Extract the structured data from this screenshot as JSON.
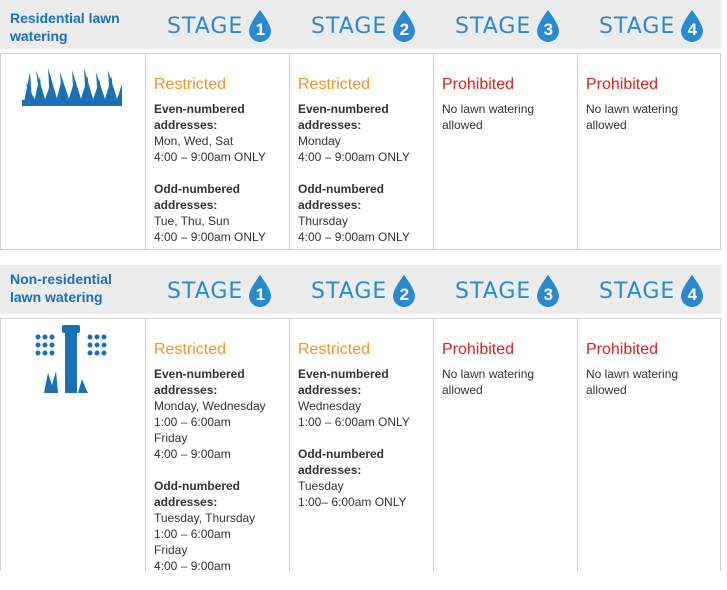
{
  "colors": {
    "accent": "#2a8ad0",
    "restricted": "#f0962a",
    "prohibited": "#e0201a",
    "title": "#1a6fb5"
  },
  "stage_word": "STAGE",
  "residential": {
    "title": "Residential lawn watering",
    "icon": "grass-icon",
    "stages": [
      "1",
      "2",
      "3",
      "4"
    ],
    "cells": [
      {
        "status": "Restricted",
        "even_label": "Even-numbered addresses:",
        "even_lines": [
          "Mon, Wed, Sat",
          "4:00 – 9:00am ONLY"
        ],
        "odd_label": "Odd-numbered addresses:",
        "odd_lines": [
          "Tue, Thu, Sun",
          "4:00 – 9:00am ONLY"
        ]
      },
      {
        "status": "Restricted",
        "even_label": "Even-numbered addresses:",
        "even_lines": [
          "Monday",
          "4:00 – 9:00am ONLY"
        ],
        "odd_label": "Odd-numbered addresses:",
        "odd_lines": [
          "Thursday",
          "4:00 – 9:00am ONLY"
        ]
      },
      {
        "status": "Prohibited",
        "note": "No lawn watering allowed"
      },
      {
        "status": "Prohibited",
        "note": "No lawn watering allowed"
      }
    ]
  },
  "nonresidential": {
    "title": "Non-residential lawn watering",
    "icon": "sprinkler-icon",
    "stages": [
      "1",
      "2",
      "3",
      "4"
    ],
    "cells": [
      {
        "status": "Restricted",
        "even_label": "Even-numbered addresses:",
        "even_lines": [
          "Monday, Wednesday",
          "1:00 – 6:00am",
          "Friday",
          "4:00 – 9:00am"
        ],
        "odd_label": "Odd-numbered addresses:",
        "odd_lines": [
          "Tuesday, Thursday",
          "1:00 – 6:00am",
          "Friday",
          "4:00 – 9:00am"
        ]
      },
      {
        "status": "Restricted",
        "even_label": "Even-numbered addresses:",
        "even_lines": [
          "Wednesday",
          "1:00 – 6:00am ONLY"
        ],
        "odd_label": "Odd-numbered addresses:",
        "odd_lines": [
          "Tuesday",
          "1:00– 6:00am ONLY"
        ]
      },
      {
        "status": "Prohibited",
        "note": "No lawn watering allowed"
      },
      {
        "status": "Prohibited",
        "note": "No lawn watering allowed"
      }
    ]
  }
}
